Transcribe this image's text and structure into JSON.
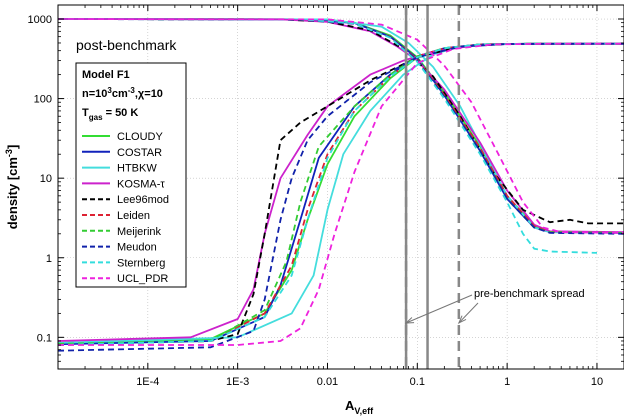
{
  "chart_data": {
    "type": "line",
    "title": "post-benchmark",
    "xlabel_main": "A",
    "xlabel_sub": "V,eff",
    "ylabel": "density [cm",
    "ylabel_sup": "-3",
    "ylabel_end": "]",
    "xscale": "log",
    "yscale": "log",
    "xlim": [
      1e-05,
      20
    ],
    "ylim": [
      0.04,
      1500
    ],
    "grid": true,
    "xticks": [
      {
        "value": 0.0001,
        "label": "1E-4"
      },
      {
        "value": 0.001,
        "label": "1E-3"
      },
      {
        "value": 0.01,
        "label": "0.01"
      },
      {
        "value": 0.1,
        "label": "0.1"
      },
      {
        "value": 1,
        "label": "1"
      },
      {
        "value": 10,
        "label": "10"
      }
    ],
    "yticks": [
      {
        "value": 0.1,
        "label": "0.1"
      },
      {
        "value": 1,
        "label": "1"
      },
      {
        "value": 10,
        "label": "10"
      },
      {
        "value": 100,
        "label": "100"
      },
      {
        "value": 1000,
        "label": "1000"
      }
    ],
    "legend": {
      "placement": "upper-left",
      "model": "Model F1",
      "cond_n_prefix": "n=10",
      "cond_n_exp": "3",
      "cond_n_unit": "cm",
      "cond_n_unit_exp": "-3",
      "cond_chi": ",χ=10",
      "cond_t_prefix": "T",
      "cond_t_sub": "gas",
      "cond_t_value": " = 50 K"
    },
    "vertical_lines": [
      {
        "x": 0.075,
        "style": "solid"
      },
      {
        "x": 0.13,
        "style": "solid"
      },
      {
        "x": 0.075,
        "style": "dashed"
      },
      {
        "x": 0.29,
        "style": "dashed"
      }
    ],
    "annotation": "pre-benchmark spread",
    "series": [
      {
        "name": "CLOUDY",
        "color": "#33dd33",
        "dash": "solid",
        "rise": [
          [
            1e-05,
            0.085
          ],
          [
            0.0005,
            0.095
          ],
          [
            0.002,
            0.2
          ],
          [
            0.004,
            0.7
          ],
          [
            0.006,
            3
          ],
          [
            0.01,
            15
          ],
          [
            0.02,
            60
          ],
          [
            0.05,
            180
          ],
          [
            0.1,
            330
          ],
          [
            0.2,
            420
          ],
          [
            0.5,
            480
          ],
          [
            2,
            490
          ],
          [
            20,
            490
          ]
        ],
        "fall": [
          [
            1e-05,
            1000
          ],
          [
            0.005,
            990
          ],
          [
            0.02,
            900
          ],
          [
            0.05,
            620
          ],
          [
            0.1,
            330
          ],
          [
            0.2,
            120
          ],
          [
            0.5,
            25
          ],
          [
            1,
            6
          ],
          [
            2,
            2.5
          ],
          [
            3,
            2.1
          ],
          [
            20,
            2.05
          ]
        ]
      },
      {
        "name": "COSTAR",
        "color": "#1122bb",
        "dash": "solid",
        "rise": [
          [
            1e-05,
            0.082
          ],
          [
            0.0005,
            0.09
          ],
          [
            0.002,
            0.18
          ],
          [
            0.003,
            0.45
          ],
          [
            0.005,
            3
          ],
          [
            0.008,
            18
          ],
          [
            0.02,
            80
          ],
          [
            0.05,
            200
          ],
          [
            0.1,
            340
          ],
          [
            0.2,
            430
          ],
          [
            0.5,
            480
          ],
          [
            2,
            490
          ],
          [
            20,
            490
          ]
        ],
        "fall": [
          [
            1e-05,
            1000
          ],
          [
            0.005,
            990
          ],
          [
            0.02,
            890
          ],
          [
            0.05,
            600
          ],
          [
            0.1,
            320
          ],
          [
            0.2,
            110
          ],
          [
            0.5,
            22
          ],
          [
            1,
            5.5
          ],
          [
            2,
            2.4
          ],
          [
            3,
            2.1
          ],
          [
            20,
            2.05
          ]
        ]
      },
      {
        "name": "HTBKW",
        "color": "#44dddd",
        "dash": "solid",
        "rise": [
          [
            1e-05,
            0.085
          ],
          [
            0.001,
            0.1
          ],
          [
            0.004,
            0.2
          ],
          [
            0.007,
            0.6
          ],
          [
            0.01,
            4
          ],
          [
            0.015,
            20
          ],
          [
            0.03,
            70
          ],
          [
            0.07,
            200
          ],
          [
            0.15,
            360
          ],
          [
            0.3,
            450
          ],
          [
            1,
            485
          ],
          [
            20,
            490
          ]
        ],
        "fall": [
          [
            1e-05,
            1000
          ],
          [
            0.01,
            990
          ],
          [
            0.04,
            800
          ],
          [
            0.08,
            500
          ],
          [
            0.15,
            250
          ],
          [
            0.3,
            80
          ],
          [
            0.6,
            18
          ],
          [
            1,
            6
          ],
          [
            2,
            2.4
          ],
          [
            3,
            2.1
          ],
          [
            20,
            2.05
          ]
        ]
      },
      {
        "name": "KOSMA-τ",
        "color": "#cc22cc",
        "dash": "solid",
        "rise": [
          [
            1e-05,
            0.09
          ],
          [
            0.0003,
            0.1
          ],
          [
            0.001,
            0.17
          ],
          [
            0.0015,
            0.4
          ],
          [
            0.002,
            2
          ],
          [
            0.003,
            10
          ],
          [
            0.006,
            35
          ],
          [
            0.01,
            80
          ],
          [
            0.03,
            200
          ],
          [
            0.07,
            300
          ],
          [
            0.15,
            390
          ],
          [
            0.4,
            460
          ],
          [
            1,
            485
          ],
          [
            20,
            490
          ]
        ],
        "fall": [
          [
            1e-05,
            1000
          ],
          [
            0.003,
            990
          ],
          [
            0.01,
            920
          ],
          [
            0.03,
            700
          ],
          [
            0.06,
            450
          ],
          [
            0.1,
            300
          ],
          [
            0.2,
            130
          ],
          [
            0.5,
            28
          ],
          [
            1,
            7
          ],
          [
            2,
            2.6
          ],
          [
            3,
            2.15
          ],
          [
            20,
            2.1
          ]
        ]
      },
      {
        "name": "Lee96mod",
        "color": "#000000",
        "dash": "dashed",
        "rise": [
          [
            1e-05,
            0.08
          ],
          [
            0.0005,
            0.09
          ],
          [
            0.001,
            0.11
          ],
          [
            0.0015,
            0.35
          ],
          [
            0.002,
            2
          ],
          [
            0.003,
            30
          ],
          [
            0.005,
            50
          ],
          [
            0.01,
            80
          ],
          [
            0.03,
            170
          ],
          [
            0.1,
            330
          ],
          [
            0.3,
            450
          ],
          [
            1,
            485
          ],
          [
            20,
            490
          ]
        ],
        "fall": [
          [
            1e-05,
            1000
          ],
          [
            0.003,
            990
          ],
          [
            0.01,
            930
          ],
          [
            0.03,
            720
          ],
          [
            0.07,
            420
          ],
          [
            0.15,
            190
          ],
          [
            0.3,
            60
          ],
          [
            0.7,
            12
          ],
          [
            1.5,
            4
          ],
          [
            3,
            2.8
          ],
          [
            5,
            3
          ],
          [
            8,
            2.7
          ],
          [
            20,
            2.7
          ]
        ]
      },
      {
        "name": "Leiden",
        "color": "#dd2233",
        "dash": "dashed",
        "rise": [
          [
            1e-05,
            0.082
          ],
          [
            0.0005,
            0.09
          ],
          [
            0.002,
            0.2
          ],
          [
            0.004,
            0.8
          ],
          [
            0.006,
            4
          ],
          [
            0.01,
            20
          ],
          [
            0.02,
            70
          ],
          [
            0.05,
            190
          ],
          [
            0.1,
            340
          ],
          [
            0.2,
            430
          ],
          [
            0.5,
            480
          ],
          [
            2,
            490
          ],
          [
            20,
            490
          ]
        ],
        "fall": [
          [
            1e-05,
            1000
          ],
          [
            0.005,
            990
          ],
          [
            0.02,
            880
          ],
          [
            0.05,
            600
          ],
          [
            0.1,
            310
          ],
          [
            0.2,
            110
          ],
          [
            0.5,
            24
          ],
          [
            1,
            6
          ],
          [
            2,
            2.5
          ],
          [
            3,
            2.1
          ],
          [
            20,
            2.05
          ]
        ]
      },
      {
        "name": "Meijerink",
        "color": "#33cc33",
        "dash": "dashed",
        "rise": [
          [
            1e-05,
            0.083
          ],
          [
            0.0005,
            0.09
          ],
          [
            0.002,
            0.22
          ],
          [
            0.0035,
            0.9
          ],
          [
            0.005,
            5
          ],
          [
            0.008,
            25
          ],
          [
            0.02,
            80
          ],
          [
            0.05,
            200
          ],
          [
            0.1,
            340
          ],
          [
            0.2,
            430
          ],
          [
            0.5,
            480
          ],
          [
            2,
            490
          ],
          [
            20,
            490
          ]
        ],
        "fall": [
          [
            1e-05,
            1000
          ],
          [
            0.005,
            990
          ],
          [
            0.02,
            880
          ],
          [
            0.05,
            590
          ],
          [
            0.1,
            300
          ],
          [
            0.2,
            105
          ],
          [
            0.5,
            22
          ],
          [
            1,
            5.5
          ],
          [
            2,
            2.4
          ],
          [
            3,
            2.1
          ],
          [
            20,
            2.05
          ]
        ]
      },
      {
        "name": "Meudon",
        "color": "#1122aa",
        "dash": "dashed",
        "rise": [
          [
            1e-05,
            0.068
          ],
          [
            0.0005,
            0.075
          ],
          [
            0.0015,
            0.12
          ],
          [
            0.002,
            0.3
          ],
          [
            0.003,
            3
          ],
          [
            0.004,
            10
          ],
          [
            0.006,
            30
          ],
          [
            0.01,
            60
          ],
          [
            0.03,
            160
          ],
          [
            0.1,
            330
          ],
          [
            0.3,
            450
          ],
          [
            1,
            485
          ],
          [
            20,
            490
          ]
        ],
        "fall": [
          [
            1e-05,
            1000
          ],
          [
            0.005,
            980
          ],
          [
            0.02,
            870
          ],
          [
            0.05,
            590
          ],
          [
            0.1,
            300
          ],
          [
            0.2,
            105
          ],
          [
            0.5,
            22
          ],
          [
            1,
            5.5
          ],
          [
            2,
            2.4
          ],
          [
            3,
            2.05
          ],
          [
            20,
            2
          ]
        ]
      },
      {
        "name": "Sternberg",
        "color": "#33dddd",
        "dash": "dashed",
        "rise": [
          [
            1e-05,
            0.08
          ],
          [
            0.0005,
            0.09
          ],
          [
            0.002,
            0.18
          ],
          [
            0.004,
            0.6
          ],
          [
            0.006,
            3
          ],
          [
            0.01,
            18
          ],
          [
            0.02,
            70
          ],
          [
            0.05,
            190
          ],
          [
            0.1,
            330
          ],
          [
            0.2,
            430
          ],
          [
            0.5,
            480
          ],
          [
            2,
            490
          ],
          [
            20,
            490
          ]
        ],
        "fall": [
          [
            1e-05,
            1000
          ],
          [
            0.005,
            990
          ],
          [
            0.02,
            880
          ],
          [
            0.05,
            580
          ],
          [
            0.1,
            290
          ],
          [
            0.2,
            100
          ],
          [
            0.5,
            20
          ],
          [
            1,
            5
          ],
          [
            1.5,
            2
          ],
          [
            2,
            1.3
          ],
          [
            3,
            1.2
          ],
          [
            10,
            1.15
          ]
        ]
      },
      {
        "name": "UCL_PDR",
        "color": "#ee22dd",
        "dash": "dashed",
        "rise": [
          [
            1e-05,
            0.08
          ],
          [
            0.001,
            0.08
          ],
          [
            0.003,
            0.09
          ],
          [
            0.005,
            0.13
          ],
          [
            0.008,
            0.4
          ],
          [
            0.012,
            2
          ],
          [
            0.02,
            12
          ],
          [
            0.04,
            80
          ],
          [
            0.1,
            280
          ],
          [
            0.25,
            420
          ],
          [
            0.7,
            480
          ],
          [
            3,
            490
          ],
          [
            20,
            490
          ]
        ],
        "fall": [
          [
            1e-05,
            1000
          ],
          [
            0.01,
            990
          ],
          [
            0.04,
            850
          ],
          [
            0.1,
            550
          ],
          [
            0.2,
            260
          ],
          [
            0.4,
            90
          ],
          [
            0.8,
            20
          ],
          [
            1.5,
            5
          ],
          [
            2.5,
            2.4
          ],
          [
            4,
            2.1
          ],
          [
            20,
            2.05
          ]
        ]
      }
    ]
  }
}
